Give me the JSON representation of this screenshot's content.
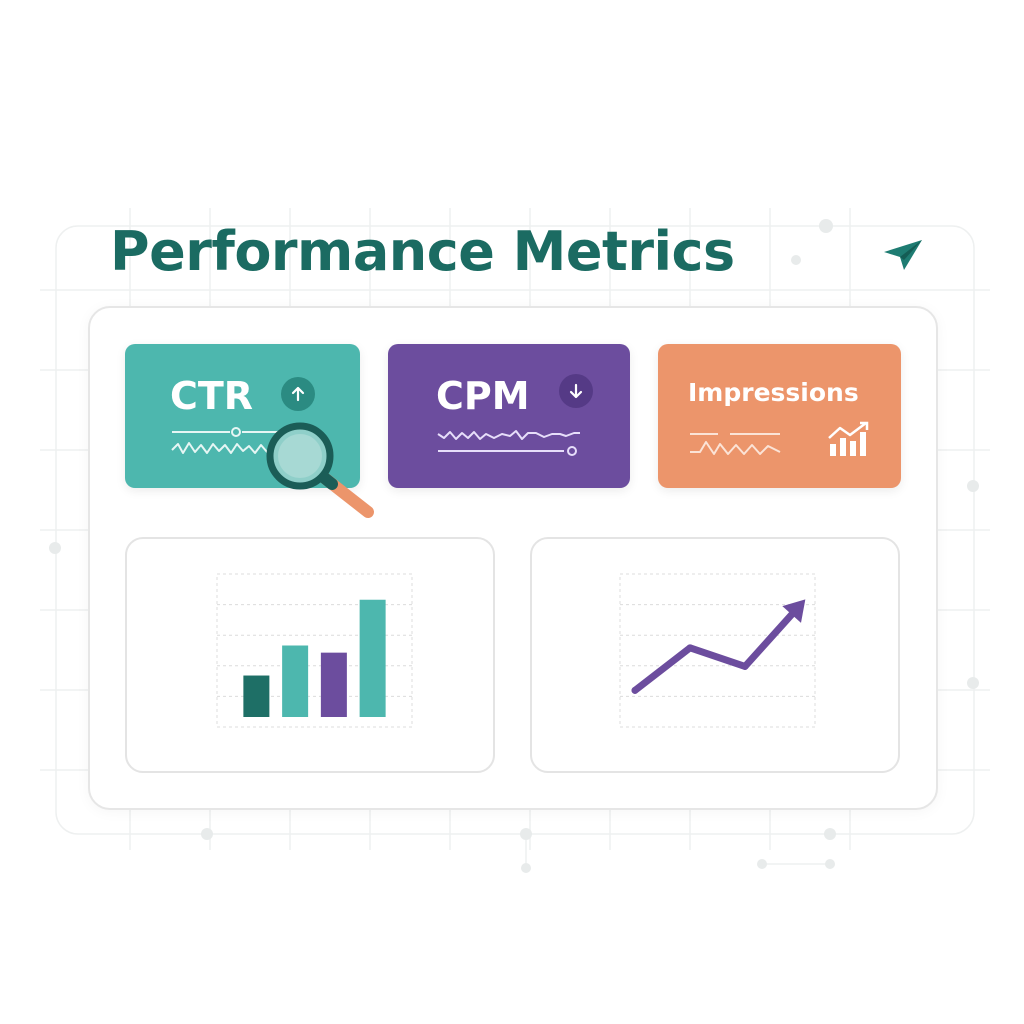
{
  "header": {
    "title": "Performance Metrics",
    "send_icon": "paper-plane-icon"
  },
  "metrics": [
    {
      "label": "CTR",
      "trend": "up",
      "trend_icon": "arrow-up-icon",
      "color": "#4db7ae"
    },
    {
      "label": "CPM",
      "trend": "down",
      "trend_icon": "arrow-down-icon",
      "color": "#6c4d9e"
    },
    {
      "label": "Impressions",
      "icon": "bar-chart-growth-icon",
      "color": "#ec956b"
    }
  ],
  "decorations": {
    "magnifier_icon": "magnifying-glass-icon"
  },
  "chart_data": [
    {
      "type": "bar",
      "categories": [
        "1",
        "2",
        "3",
        "4"
      ],
      "values": [
        1.45,
        2.5,
        2.25,
        4.1
      ],
      "colors": [
        "#1e6f66",
        "#4db7ae",
        "#6c4d9e",
        "#4db7ae"
      ],
      "ylim": [
        0,
        5
      ],
      "title": "",
      "xlabel": "",
      "ylabel": "",
      "grid": true
    },
    {
      "type": "line",
      "x": [
        1,
        2,
        3,
        4
      ],
      "values": [
        1.0,
        2.6,
        1.9,
        4.2
      ],
      "color": "#6c4d9e",
      "end_marker": "arrow",
      "ylim": [
        0,
        5
      ],
      "title": "",
      "xlabel": "",
      "ylabel": "",
      "grid": true
    }
  ],
  "colors": {
    "title": "#1b6b62",
    "teal": "#4db7ae",
    "dark_teal": "#1e6f66",
    "purple": "#6c4d9e",
    "orange": "#ec956b"
  }
}
